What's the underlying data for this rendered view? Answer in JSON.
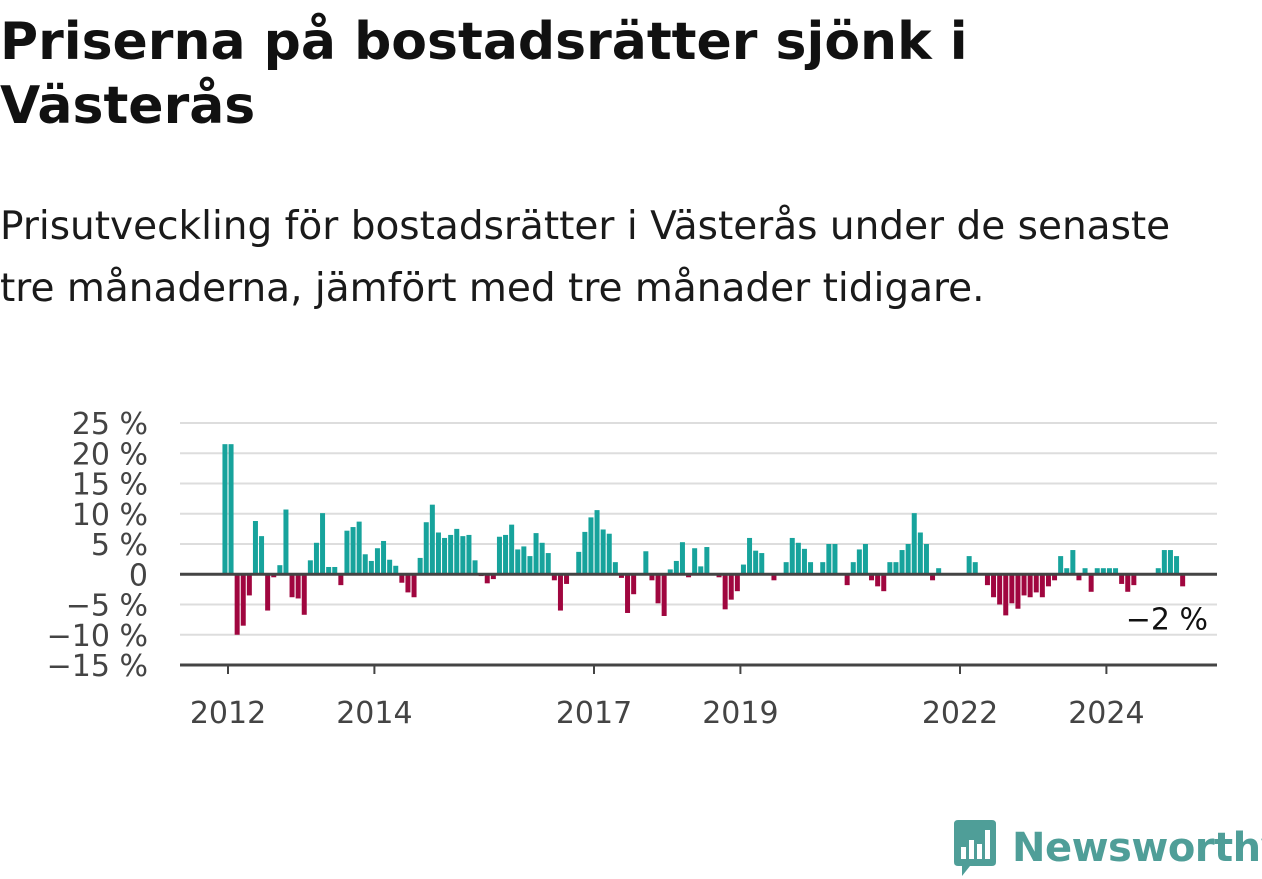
{
  "title": "Priserna på bostadsrätter sjönk i Västerås",
  "subtitle": "Prisutveckling för bostadsrätter i Västerås under de senaste tre månaderna, jämfört med tre månader tidigare.",
  "brand": {
    "name": "Newsworthy",
    "icon": "newsworthy-bar-chart-logo",
    "color": "#4f9e98"
  },
  "colors": {
    "positive": "#17a39c",
    "negative": "#a0063f",
    "grid": "#dddddd",
    "axis": "#444444",
    "text": "#444444"
  },
  "chart_data": {
    "type": "bar",
    "title": "Priserna på bostadsrätter sjönk i Västerås",
    "xlabel": "",
    "ylabel": "",
    "ylim": [
      -15,
      25
    ],
    "yticks": [
      25,
      20,
      15,
      10,
      5,
      0,
      -5,
      -10,
      -15
    ],
    "ytick_labels": [
      "25 %",
      "20 %",
      "15 %",
      "10 %",
      "5 %",
      "0",
      "−5 %",
      "−10 %",
      "−15 %"
    ],
    "x_tick_labels": [
      "2012",
      "2014",
      "2017",
      "2019",
      "2022",
      "2024"
    ],
    "x_start": "2012-01",
    "frequency": "monthly",
    "grid": true,
    "annotation": {
      "text": "−2 %",
      "value": -2,
      "target": "last"
    },
    "values": [
      21.5,
      21.5,
      -10,
      -8.5,
      -3.5,
      8.8,
      6.3,
      -6,
      -0.5,
      1.5,
      10.7,
      -3.8,
      -4,
      -6.7,
      2.3,
      5.2,
      10.1,
      1.2,
      1.2,
      -1.8,
      7.2,
      7.8,
      8.7,
      3.3,
      2.2,
      4.3,
      5.5,
      2.4,
      1.4,
      -1.4,
      -3,
      -3.8,
      2.7,
      8.6,
      11.5,
      6.9,
      6,
      6.5,
      7.5,
      6.3,
      6.5,
      2.3,
      -0.3,
      -1.5,
      -0.8,
      6.2,
      6.5,
      8.2,
      4.1,
      4.6,
      3,
      6.8,
      5.2,
      3.5,
      -1,
      -6,
      -1.6,
      0,
      3.7,
      7,
      9.4,
      10.6,
      7.4,
      6.7,
      2,
      -0.6,
      -6.4,
      -3.3,
      0,
      3.8,
      -1,
      -4.8,
      -6.9,
      0.8,
      2.2,
      5.3,
      -0.5,
      4.3,
      1.3,
      4.5,
      0,
      -0.5,
      -5.8,
      -4.2,
      -2.8,
      1.6,
      6,
      3.9,
      3.5,
      0,
      -1,
      0,
      2,
      6,
      5.2,
      4.2,
      2,
      0,
      2,
      5,
      5,
      0,
      -1.8,
      2,
      4.1,
      5,
      -1,
      -2,
      -2.8,
      2,
      2,
      4,
      5,
      10.1,
      6.9,
      5,
      -1,
      1,
      0,
      0,
      0,
      0,
      3,
      2,
      0,
      -1.8,
      -3.8,
      -5,
      -6.8,
      -4.8,
      -5.7,
      -3.5,
      -3.8,
      -3,
      -3.8,
      -2,
      -1,
      3,
      1,
      4,
      -1,
      1,
      -2.9,
      1,
      1,
      1,
      1,
      -1.6,
      -2.9,
      -1.8,
      0,
      0,
      0,
      1,
      4,
      4,
      3,
      -2
    ]
  }
}
